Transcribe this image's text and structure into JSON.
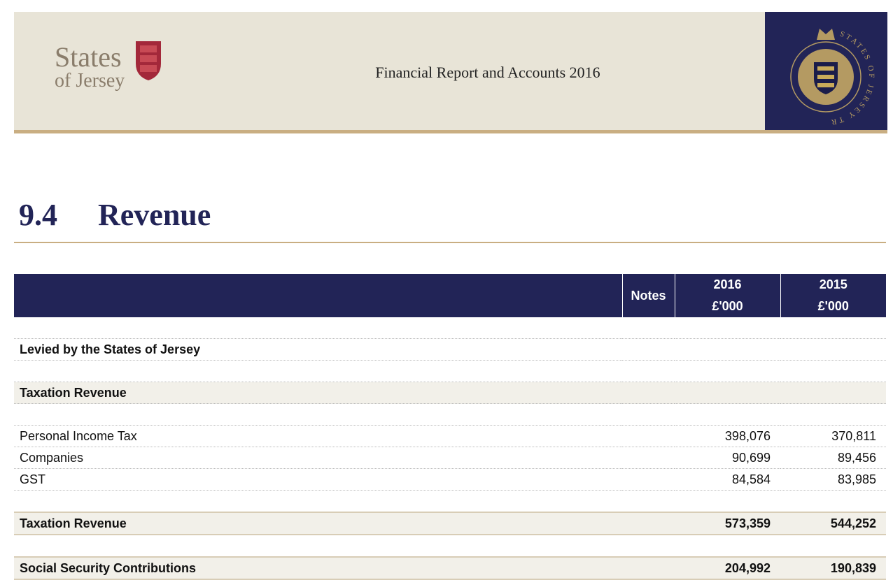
{
  "header": {
    "logo": [
      "States",
      "of Jersey"
    ],
    "title": "Financial Report and Accounts 2016",
    "seal": "STATES OF JERSEY TREASURY"
  },
  "section": {
    "number": "9.4",
    "title": "Revenue"
  },
  "table": {
    "headers": {
      "notes": "Notes",
      "years": [
        [
          "2016",
          "£'000"
        ],
        [
          "2015",
          "£'000"
        ]
      ]
    },
    "rows": [
      {
        "kind": "heading",
        "label": "Levied by the States of Jersey"
      },
      {
        "kind": "subheading",
        "label": "Taxation Revenue"
      },
      {
        "kind": "item",
        "label": "Personal Income Tax",
        "values": [
          "398,076",
          "370,811"
        ]
      },
      {
        "kind": "item",
        "label": "Companies",
        "values": [
          "90,699",
          "89,456"
        ]
      },
      {
        "kind": "item",
        "label": "GST",
        "values": [
          "84,584",
          "83,985"
        ]
      },
      {
        "kind": "total",
        "label": "Taxation Revenue",
        "values": [
          "573,359",
          "544,252"
        ]
      },
      {
        "kind": "total",
        "label": "Social Security Contributions",
        "values": [
          "204,992",
          "190,839"
        ]
      }
    ]
  }
}
